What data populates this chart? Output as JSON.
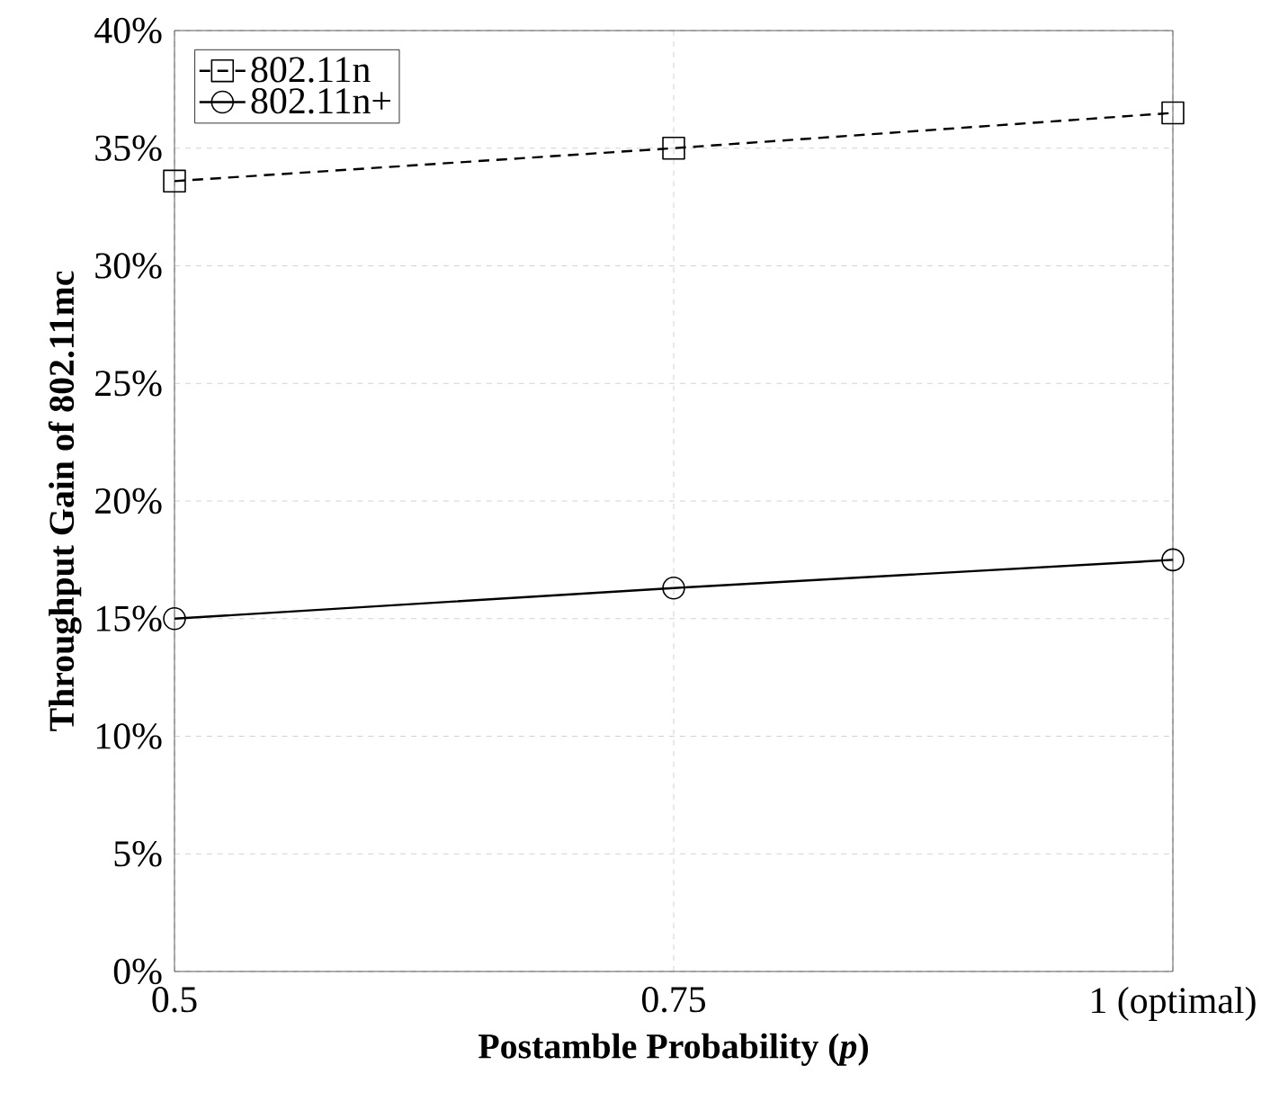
{
  "chart_data": {
    "type": "line",
    "xlabel": "Postamble Probability (*p*)",
    "ylabel": "Throughput Gain of 802.11mc",
    "x": [
      0.5,
      0.75,
      1
    ],
    "series": [
      {
        "name": "802.11n",
        "color": "#000000",
        "values": [
          33.6,
          35.0,
          36.5
        ],
        "marker": "square",
        "line_style": "dashed"
      },
      {
        "name": "802.11n+",
        "color": "#000000",
        "values": [
          15.0,
          16.3,
          17.5
        ],
        "marker": "circle",
        "line_style": "solid"
      }
    ],
    "xlim": [
      0.5,
      1
    ],
    "xticks": [
      0.5,
      0.75,
      {
        "value": 1,
        "label": "1 (optimal)"
      }
    ],
    "ylim": [
      0,
      40
    ],
    "yticks": [
      {
        "value": 0,
        "label": "0%"
      },
      {
        "value": 5,
        "label": "5%"
      },
      {
        "value": 10,
        "label": "10%"
      },
      {
        "value": 15,
        "label": "15%"
      },
      {
        "value": 20,
        "label": "20%"
      },
      {
        "value": 25,
        "label": "25%"
      },
      {
        "value": 30,
        "label": "30%"
      },
      {
        "value": 35,
        "label": "35%"
      },
      {
        "value": 40,
        "label": "40%"
      }
    ],
    "grid": true,
    "legend": "top left"
  }
}
